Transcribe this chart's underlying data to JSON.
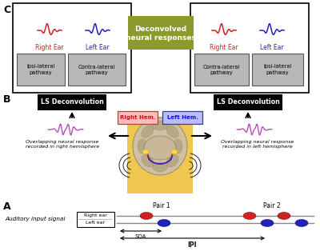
{
  "title": "Deconvolved\nneural responses",
  "title_bg": "#8b9a2a",
  "title_fg": "#ffffff",
  "label_A": "A",
  "label_B": "B",
  "label_C": "C",
  "left_box_title_red": "Right Ear",
  "left_box_title_blue": "Left Ear",
  "left_box_sub1": "Ipsi-lateral\npathway",
  "left_box_sub2": "Contra-lateral\npathway",
  "right_box_sub1": "Contra-lateral\npathway",
  "right_box_sub2": "Ipsi-lateral\npathway",
  "ls_deconv": "LS Deconvolution",
  "overlap_left": "Overlapping neural response\nrecorded in right hemisphere",
  "overlap_right": "Overlapping neural response\nrecorded in left hemisphere",
  "pair1": "Pair 1",
  "pair2": "Pair 2",
  "auditory_label": "Auditory input signal",
  "right_ear": "Right ear",
  "left_ear": "Left ear",
  "soa_label": "SOA",
  "ipi_label": "IPI",
  "right_hem": "Right Hem.",
  "left_hem": "Left Hem.",
  "red_color": "#cc2222",
  "blue_color": "#2222bb",
  "purple_color": "#bb44bb",
  "gray_box": "#b8b8b8",
  "brain_bg": "#f0c850",
  "brain_color": "#c0a882",
  "brain_dark": "#907860"
}
